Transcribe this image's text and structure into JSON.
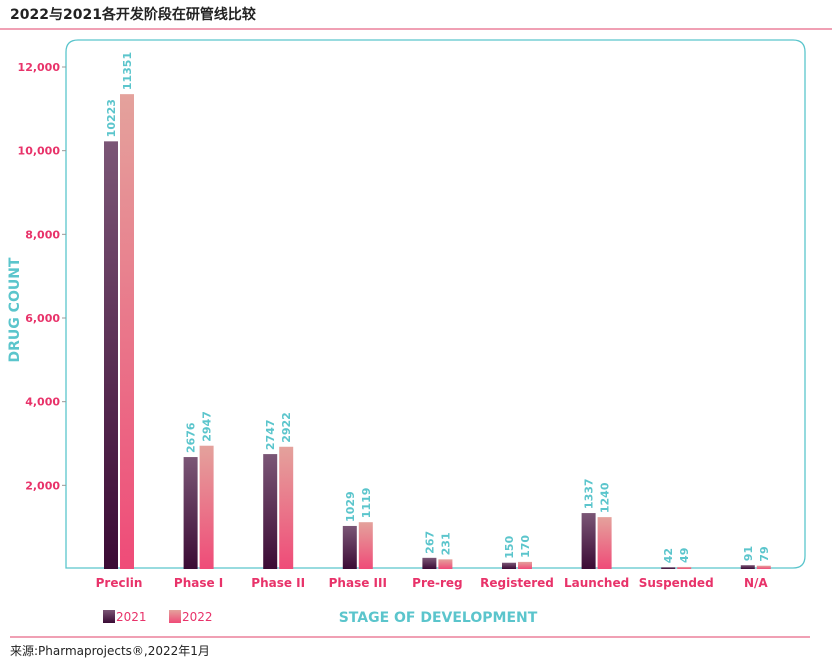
{
  "title": "2022与2021各开发阶段在研管线比较",
  "source": "来源:Pharmaprojects®,2022年1月",
  "colors": {
    "axis_text": "#e8336a",
    "label_text": "#5bc5cc",
    "frame": "#5bc5cc",
    "s2021_top": "#7b5676",
    "s2021_bottom": "#3b0b35",
    "s2022_top": "#e4a29c",
    "s2022_bottom": "#ef4b78"
  },
  "chart_data": {
    "type": "bar",
    "title": "2022与2021各开发阶段在研管线比较",
    "xlabel": "STAGE OF DEVELOPMENT",
    "ylabel": "DRUG COUNT",
    "ylim": [
      0,
      12000
    ],
    "yticks": [
      "2,000",
      "4,000",
      "6,000",
      "8,000",
      "10,000",
      "12,000"
    ],
    "ytick_values": [
      2000,
      4000,
      6000,
      8000,
      10000,
      12000
    ],
    "grid": false,
    "legend": "bottom-left",
    "categories": [
      "Preclin",
      "Phase I",
      "Phase II",
      "Phase III",
      "Pre-reg",
      "Registered",
      "Launched",
      "Suspended",
      "N/A"
    ],
    "series": [
      {
        "name": "2021",
        "values": [
          10223,
          2676,
          2747,
          1029,
          267,
          150,
          1337,
          42,
          91
        ]
      },
      {
        "name": "2022",
        "values": [
          11351,
          2947,
          2922,
          1119,
          231,
          170,
          1240,
          49,
          79
        ]
      }
    ]
  }
}
